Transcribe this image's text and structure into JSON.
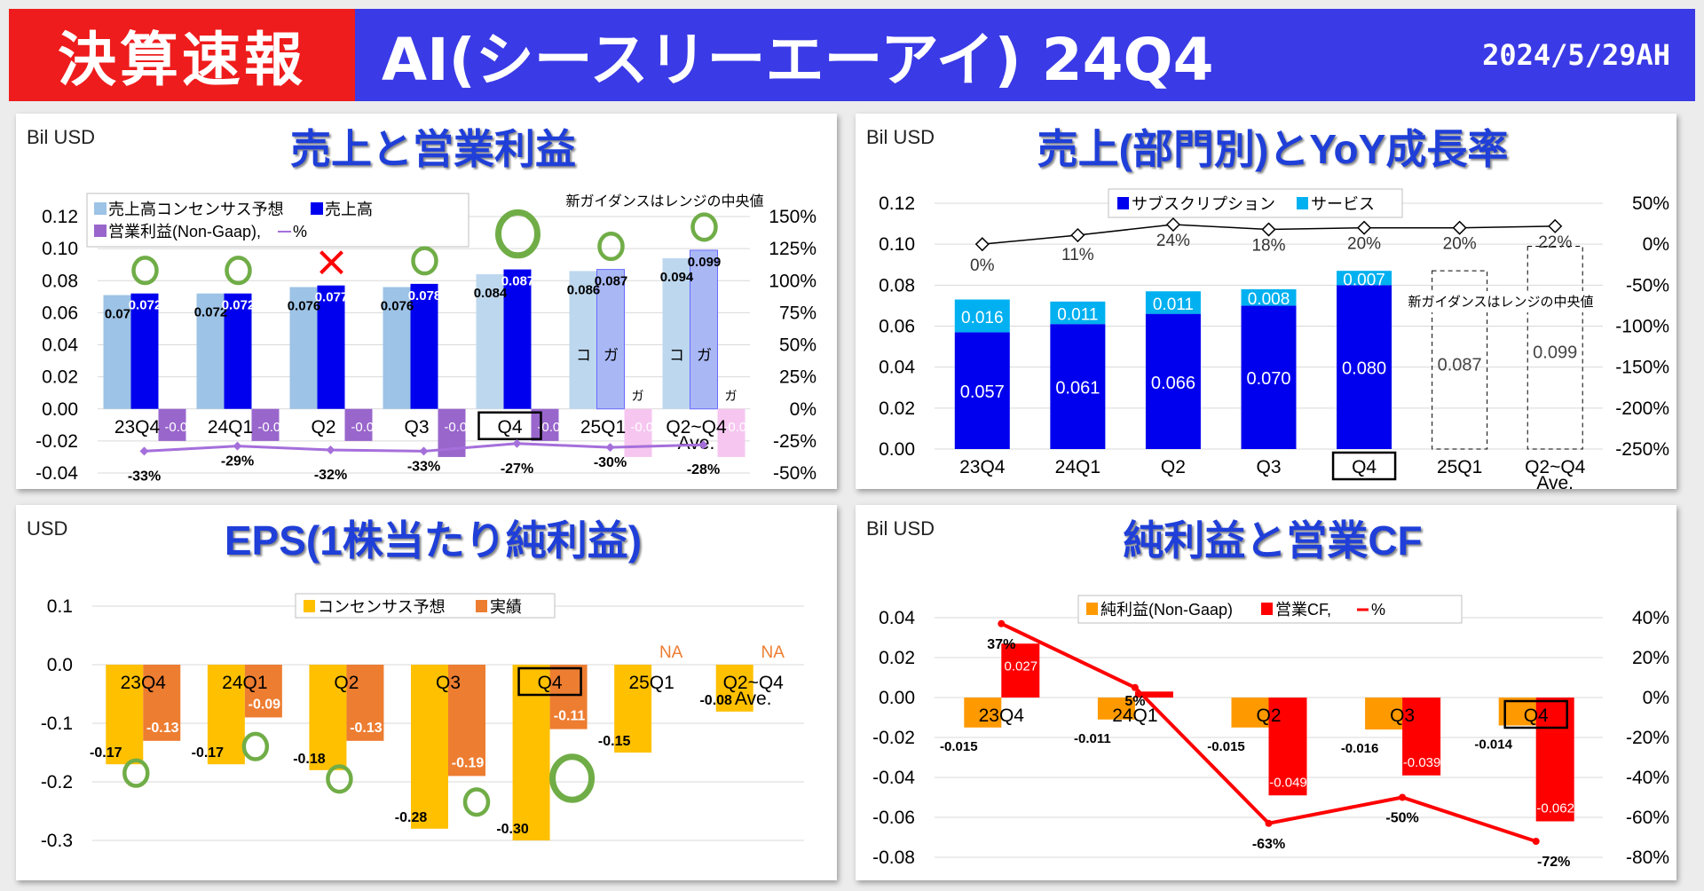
{
  "header": {
    "badge": "決算速報",
    "title": "AI(シースリーエーアイ) 24Q4",
    "date": "2024/5/29AH"
  },
  "colors": {
    "header_red": "#ee1c1c",
    "header_blue": "#3a3ae6",
    "title_blue": "#1f3fd8",
    "beat_green": "#70ad47",
    "miss_red": "#ff0000"
  },
  "chart_data": [
    {
      "type": "bar",
      "title": "売上と営業利益",
      "unit_label": "Bil USD",
      "note": "新ガイダンスはレンジの中央値",
      "categories": [
        "23Q4",
        "24Q1",
        "Q2",
        "Q3",
        "Q4",
        "25Q1",
        "Q2~Q4 Ave."
      ],
      "highlight_category": "Q4",
      "guidance_from_index": 5,
      "guidance_marks": {
        "consensus": "コ",
        "guidance": "ガ"
      },
      "ylim": [
        -0.04,
        0.12
      ],
      "yticks": [
        0.12,
        0.1,
        0.08,
        0.06,
        0.04,
        0.02,
        0.0,
        -0.02,
        -0.04
      ],
      "y2lim": [
        -50,
        150
      ],
      "y2ticks": [
        150,
        125,
        100,
        75,
        50,
        25,
        0,
        -25,
        -50
      ],
      "legend": [
        "売上高コンセンサス予想",
        "売上高",
        "営業利益(Non-Gaap), ",
        "%"
      ],
      "series": [
        {
          "name": "売上高コンセンサス予想",
          "values": [
            0.071,
            0.072,
            0.076,
            0.076,
            0.084,
            0.086,
            0.094
          ],
          "labels": [
            "0.07",
            "0.072",
            "0.076",
            "0.076",
            "0.084",
            "0.086",
            "0.094"
          ]
        },
        {
          "name": "売上高",
          "values": [
            0.072,
            0.072,
            0.077,
            0.078,
            0.087,
            0.087,
            0.099
          ],
          "labels": [
            "0.072",
            "0.072",
            "0.077",
            "0.078",
            "0.087",
            "0.087",
            "0.099"
          ]
        },
        {
          "name": "営業利益(Non-Gaap)",
          "values": [
            -0.02,
            -0.02,
            -0.02,
            -0.03,
            -0.02,
            -0.03,
            -0.03
          ],
          "labels": [
            "-0.02",
            "-0.02",
            "-0.02",
            "-0.03",
            "-0.02",
            "-0.03",
            "-0.03"
          ]
        },
        {
          "name": "%",
          "values": [
            -33,
            -29,
            -32,
            -33,
            -27,
            -30,
            -28
          ],
          "labels": [
            "-33%",
            "-29%",
            "-32%",
            "-33%",
            "-27%",
            "-30%",
            "-28%"
          ]
        }
      ],
      "beat_marks": [
        "o",
        "o",
        "x",
        "o",
        "O",
        "o",
        "o"
      ]
    },
    {
      "type": "bar",
      "title": "売上(部門別)とYoY成長率",
      "unit_label": "Bil USD",
      "note": "新ガイダンスはレンジの中央値",
      "categories": [
        "23Q4",
        "24Q1",
        "Q2",
        "Q3",
        "Q4",
        "25Q1",
        "Q2~Q4 Ave."
      ],
      "highlight_category": "Q4",
      "ylim": [
        0,
        0.12
      ],
      "yticks": [
        0.12,
        0.1,
        0.08,
        0.06,
        0.04,
        0.02,
        0.0
      ],
      "y2lim": [
        -250,
        50
      ],
      "y2ticks": [
        50,
        0,
        -50,
        -100,
        -150,
        -200,
        -250
      ],
      "legend": [
        "サブスクリプション",
        "サービス"
      ],
      "series": [
        {
          "name": "サブスクリプション",
          "values": [
            0.057,
            0.061,
            0.066,
            0.07,
            0.08,
            null,
            null
          ],
          "labels": [
            "0.057",
            "0.061",
            "0.066",
            "0.070",
            "0.080",
            "",
            ""
          ]
        },
        {
          "name": "サービス",
          "values": [
            0.016,
            0.011,
            0.011,
            0.008,
            0.007,
            null,
            null
          ],
          "labels": [
            "0.016",
            "0.011",
            "0.011",
            "0.008",
            "0.007",
            "",
            ""
          ]
        },
        {
          "name": "guidance",
          "values": [
            null,
            null,
            null,
            null,
            null,
            0.087,
            0.099
          ],
          "labels": [
            "",
            "",
            "",
            "",
            "",
            "0.087",
            "0.099"
          ]
        },
        {
          "name": "YoY",
          "values": [
            0,
            11,
            24,
            18,
            20,
            20,
            22
          ],
          "labels": [
            "0%",
            "11%",
            "24%",
            "18%",
            "20%",
            "20%",
            "22%"
          ]
        }
      ]
    },
    {
      "type": "bar",
      "title": "EPS(1株当たり純利益)",
      "unit_label": "USD",
      "categories": [
        "23Q4",
        "24Q1",
        "Q2",
        "Q3",
        "Q4",
        "25Q1",
        "Q2~Q4 Ave."
      ],
      "highlight_category": "Q4",
      "ylim": [
        -0.3,
        0.1
      ],
      "yticks": [
        0.1,
        0.0,
        -0.1,
        -0.2,
        -0.3
      ],
      "legend": [
        "コンセンサス予想",
        "実績"
      ],
      "series": [
        {
          "name": "コンセンサス予想",
          "values": [
            -0.17,
            -0.17,
            -0.18,
            -0.28,
            -0.3,
            -0.15,
            -0.08
          ],
          "labels": [
            "-0.17",
            "-0.17",
            "-0.18",
            "-0.28",
            "-0.30",
            "-0.15",
            "-0.08"
          ]
        },
        {
          "name": "実績",
          "values": [
            -0.13,
            -0.09,
            -0.13,
            -0.19,
            -0.11,
            null,
            null
          ],
          "labels": [
            "-0.13",
            "-0.09",
            "-0.13",
            "-0.19",
            "-0.11",
            "NA",
            "NA"
          ]
        }
      ],
      "beat_marks": [
        "o",
        "o",
        "o",
        "o",
        "O",
        "",
        ""
      ]
    },
    {
      "type": "bar",
      "title": "純利益と営業CF",
      "unit_label": "Bil USD",
      "categories": [
        "23Q4",
        "24Q1",
        "Q2",
        "Q3",
        "Q4"
      ],
      "highlight_category": "Q4",
      "ylim": [
        -0.08,
        0.04
      ],
      "yticks": [
        0.04,
        0.02,
        0.0,
        -0.02,
        -0.04,
        -0.06,
        -0.08
      ],
      "y2lim": [
        -80,
        40
      ],
      "y2ticks": [
        40,
        20,
        0,
        -20,
        -40,
        -60,
        -80
      ],
      "legend": [
        "純利益(Non-Gaap)",
        "営業CF, ",
        "%"
      ],
      "series": [
        {
          "name": "純利益(Non-Gaap)",
          "values": [
            -0.015,
            -0.011,
            -0.015,
            -0.016,
            -0.014
          ],
          "labels": [
            "-0.015",
            "-0.011",
            "-0.015",
            "-0.016",
            "-0.014"
          ]
        },
        {
          "name": "営業CF",
          "values": [
            0.027,
            0.003,
            -0.049,
            -0.039,
            -0.062
          ],
          "labels": [
            "0.027",
            "",
            "-0.049",
            "-0.039",
            "-0.062"
          ]
        },
        {
          "name": "%",
          "values": [
            37,
            5,
            -63,
            -50,
            -72
          ],
          "labels": [
            "37%",
            "5%",
            "-63%",
            "-50%",
            "-72%"
          ]
        }
      ]
    }
  ]
}
